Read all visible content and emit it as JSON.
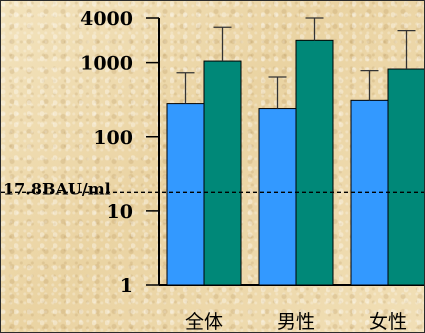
{
  "chart_data": {
    "type": "bar",
    "scale": "log",
    "ylim": [
      1,
      4000
    ],
    "y_ticks": [
      {
        "value": 4000,
        "label": "4000"
      },
      {
        "value": 1000,
        "label": "1000"
      },
      {
        "value": 100,
        "label": "100"
      },
      {
        "value": 10,
        "label": "10"
      },
      {
        "value": 1,
        "label": "1"
      }
    ],
    "categories": [
      "全体",
      "男性",
      "女性"
    ],
    "series": [
      {
        "color": "#3399ff",
        "values": [
          280,
          240,
          310
        ],
        "error_upper": [
          730,
          640,
          780
        ]
      },
      {
        "color": "#008878",
        "values": [
          1050,
          2000,
          820
        ],
        "error_upper": [
          3000,
          4000,
          2700
        ]
      }
    ],
    "reference_line": {
      "value": 17.8,
      "label": "17.8BAU/ml"
    },
    "grid": false
  }
}
